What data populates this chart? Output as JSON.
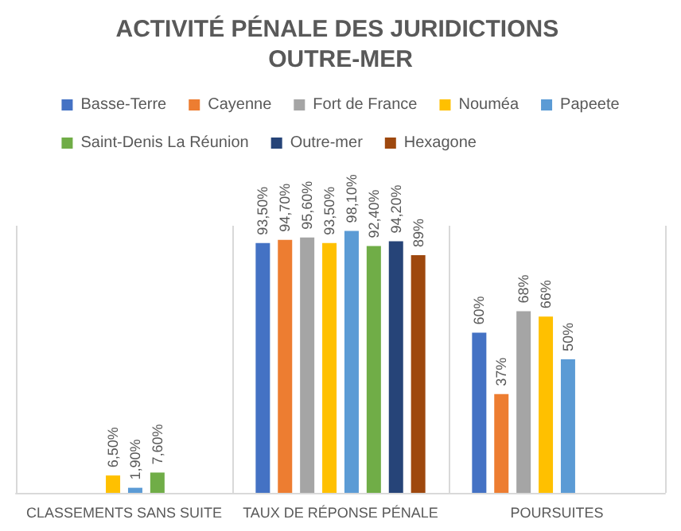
{
  "chart_data": {
    "type": "bar",
    "title": "ACTIVITÉ PÉNALE DES JURIDICTIONS OUTRE-MER",
    "categories": [
      "CLASSEMENTS SANS SUITE",
      "TAUX DE RÉPONSE PÉNALE",
      "POURSUITES"
    ],
    "series": [
      {
        "name": "Basse-Terre",
        "color": "#4472c4",
        "values": [
          null,
          93.5,
          60
        ],
        "value_labels": [
          null,
          "93,50%",
          "60%"
        ]
      },
      {
        "name": "Cayenne",
        "color": "#ed7d31",
        "values": [
          null,
          94.7,
          37
        ],
        "value_labels": [
          null,
          "94,70%",
          "37%"
        ]
      },
      {
        "name": "Fort de France",
        "color": "#a5a5a5",
        "values": [
          null,
          95.6,
          68
        ],
        "value_labels": [
          null,
          "95,60%",
          "68%"
        ]
      },
      {
        "name": "Nouméa",
        "color": "#ffc000",
        "values": [
          6.5,
          93.5,
          66
        ],
        "value_labels": [
          "6,50%",
          "93,50%",
          "66%"
        ]
      },
      {
        "name": "Papeete",
        "color": "#5b9bd5",
        "values": [
          1.9,
          98.1,
          50
        ],
        "value_labels": [
          "1,90%",
          "98,10%",
          "50%"
        ]
      },
      {
        "name": "Saint-Denis La Réunion",
        "color": "#70ad47",
        "values": [
          7.6,
          92.4,
          null
        ],
        "value_labels": [
          "7,60%",
          "92,40%",
          null
        ]
      },
      {
        "name": "Outre-mer",
        "color": "#264478",
        "values": [
          null,
          94.2,
          null
        ],
        "value_labels": [
          null,
          "94,20%",
          null
        ]
      },
      {
        "name": "Hexagone",
        "color": "#9e480e",
        "values": [
          null,
          89,
          null
        ],
        "value_labels": [
          null,
          "89%",
          null
        ]
      }
    ],
    "grid": "x",
    "legend": "top"
  }
}
